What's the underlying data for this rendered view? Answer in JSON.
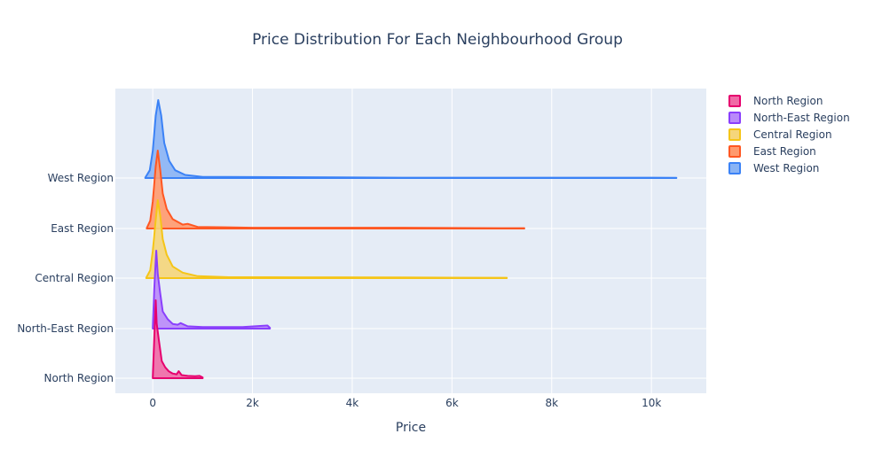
{
  "chart_data": {
    "type": "violin",
    "orientation": "horizontal",
    "side": "positive",
    "title": "Price Distribution For Each Neighbourhood Group",
    "xlabel": "Price",
    "ylabel": "",
    "xlim": [
      -750,
      11100
    ],
    "x_ticks": [
      0,
      2000,
      4000,
      6000,
      8000,
      10000
    ],
    "x_tick_labels": [
      "0",
      "2k",
      "4k",
      "6k",
      "8k",
      "10k"
    ],
    "grid": true,
    "legend_position": "top-right",
    "categories": [
      "North Region",
      "North-East Region",
      "Central Region",
      "East Region",
      "West Region"
    ],
    "series": [
      {
        "name": "North Region",
        "color": "#e6006e",
        "fill": "#f06aa6",
        "range": [
          0,
          1000
        ],
        "density": [
          [
            0,
            0.01
          ],
          [
            30,
            0.5
          ],
          [
            60,
            1.0
          ],
          [
            80,
            0.7
          ],
          [
            120,
            0.5
          ],
          [
            180,
            0.22
          ],
          [
            250,
            0.14
          ],
          [
            320,
            0.09
          ],
          [
            400,
            0.06
          ],
          [
            480,
            0.05
          ],
          [
            520,
            0.09
          ],
          [
            580,
            0.04
          ],
          [
            700,
            0.03
          ],
          [
            850,
            0.025
          ],
          [
            940,
            0.03
          ],
          [
            1000,
            0.01
          ]
        ]
      },
      {
        "name": "North-East Region",
        "color": "#8a3ffc",
        "fill": "#b98afa",
        "range": [
          0,
          2350
        ],
        "density": [
          [
            0,
            0.01
          ],
          [
            30,
            0.5
          ],
          [
            70,
            1.0
          ],
          [
            100,
            0.7
          ],
          [
            150,
            0.45
          ],
          [
            200,
            0.22
          ],
          [
            300,
            0.12
          ],
          [
            400,
            0.06
          ],
          [
            500,
            0.05
          ],
          [
            560,
            0.07
          ],
          [
            700,
            0.03
          ],
          [
            1000,
            0.02
          ],
          [
            1800,
            0.02
          ],
          [
            2300,
            0.04
          ],
          [
            2350,
            0.01
          ]
        ]
      },
      {
        "name": "Central Region",
        "color": "#f5c518",
        "fill": "#f5d67a",
        "range": [
          -130,
          7100
        ],
        "density": [
          [
            -130,
            0.005
          ],
          [
            -50,
            0.1
          ],
          [
            0,
            0.35
          ],
          [
            60,
            0.75
          ],
          [
            100,
            1.0
          ],
          [
            150,
            0.8
          ],
          [
            200,
            0.5
          ],
          [
            280,
            0.3
          ],
          [
            400,
            0.15
          ],
          [
            600,
            0.07
          ],
          [
            900,
            0.025
          ],
          [
            1500,
            0.012
          ],
          [
            3000,
            0.01
          ],
          [
            5000,
            0.008
          ],
          [
            7100,
            0.005
          ]
        ]
      },
      {
        "name": "East Region",
        "color": "#ff5722",
        "fill": "#ff9a6e",
        "range": [
          -120,
          7450
        ],
        "density": [
          [
            -120,
            0.005
          ],
          [
            -50,
            0.1
          ],
          [
            0,
            0.35
          ],
          [
            60,
            0.8
          ],
          [
            100,
            1.0
          ],
          [
            150,
            0.75
          ],
          [
            200,
            0.45
          ],
          [
            280,
            0.25
          ],
          [
            400,
            0.12
          ],
          [
            600,
            0.05
          ],
          [
            700,
            0.06
          ],
          [
            900,
            0.02
          ],
          [
            2000,
            0.01
          ],
          [
            5000,
            0.01
          ],
          [
            7000,
            0.005
          ],
          [
            7450,
            0.005
          ]
        ]
      },
      {
        "name": "West Region",
        "color": "#3b82f6",
        "fill": "#8ab4f5",
        "range": [
          -150,
          10500
        ],
        "density": [
          [
            -150,
            0.005
          ],
          [
            -60,
            0.1
          ],
          [
            0,
            0.35
          ],
          [
            60,
            0.8
          ],
          [
            110,
            1.0
          ],
          [
            170,
            0.8
          ],
          [
            230,
            0.45
          ],
          [
            330,
            0.22
          ],
          [
            450,
            0.1
          ],
          [
            650,
            0.04
          ],
          [
            1000,
            0.015
          ],
          [
            2000,
            0.012
          ],
          [
            5000,
            0.005
          ],
          [
            10000,
            0.005
          ],
          [
            10500,
            0.002
          ]
        ]
      }
    ]
  }
}
